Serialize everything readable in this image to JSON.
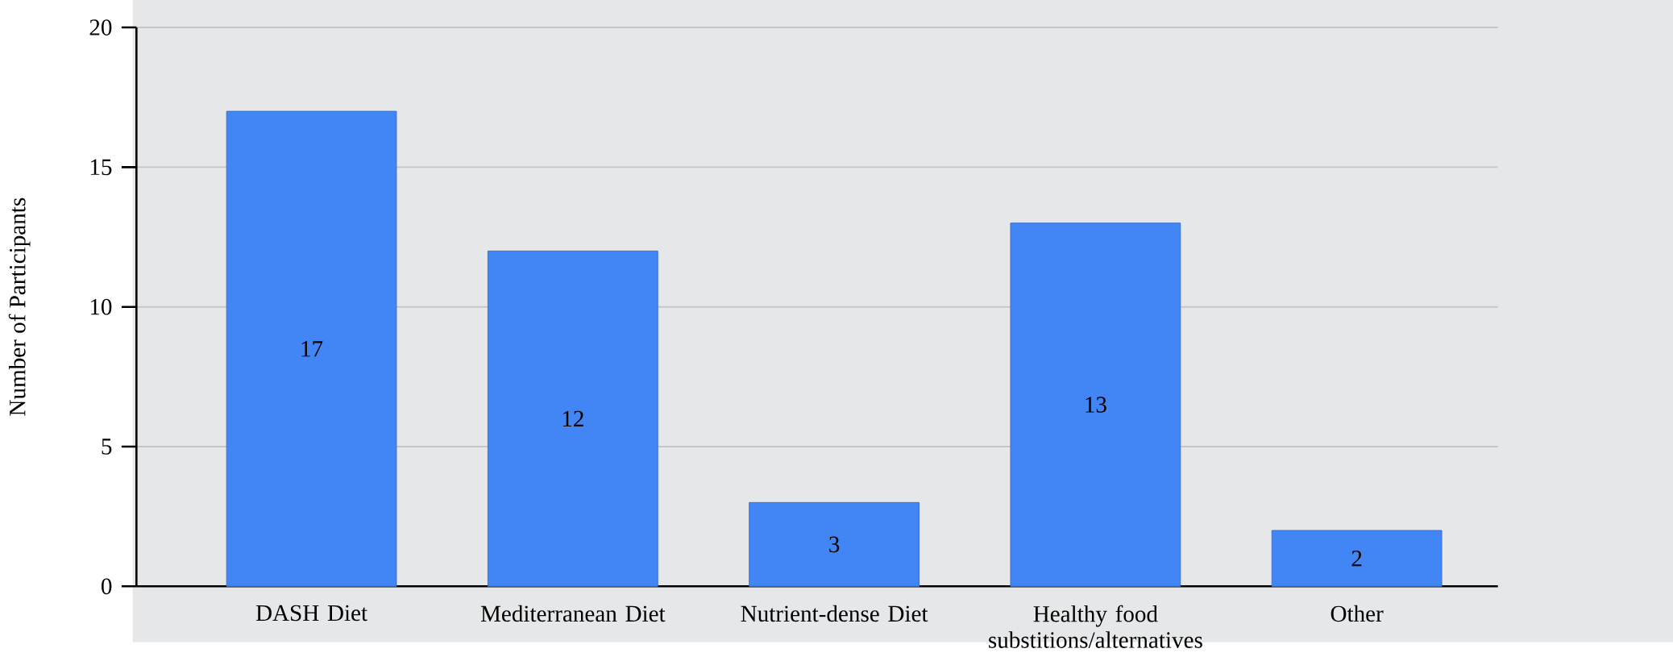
{
  "chart_data": {
    "type": "bar",
    "ylabel": "Number of Participants",
    "categories": [
      "DASH Diet",
      "Mediterranean Diet",
      "Nutrient-dense Diet",
      "Healthy food substitions/alternatives",
      "Other"
    ],
    "values": [
      17,
      12,
      3,
      13,
      2
    ],
    "value_labels": [
      "17",
      "12",
      "3",
      "13",
      "2"
    ],
    "color": "#4285f4",
    "ylim": [
      0,
      20
    ],
    "yticks": [
      0,
      5,
      10,
      15,
      20
    ],
    "grid": "y"
  }
}
